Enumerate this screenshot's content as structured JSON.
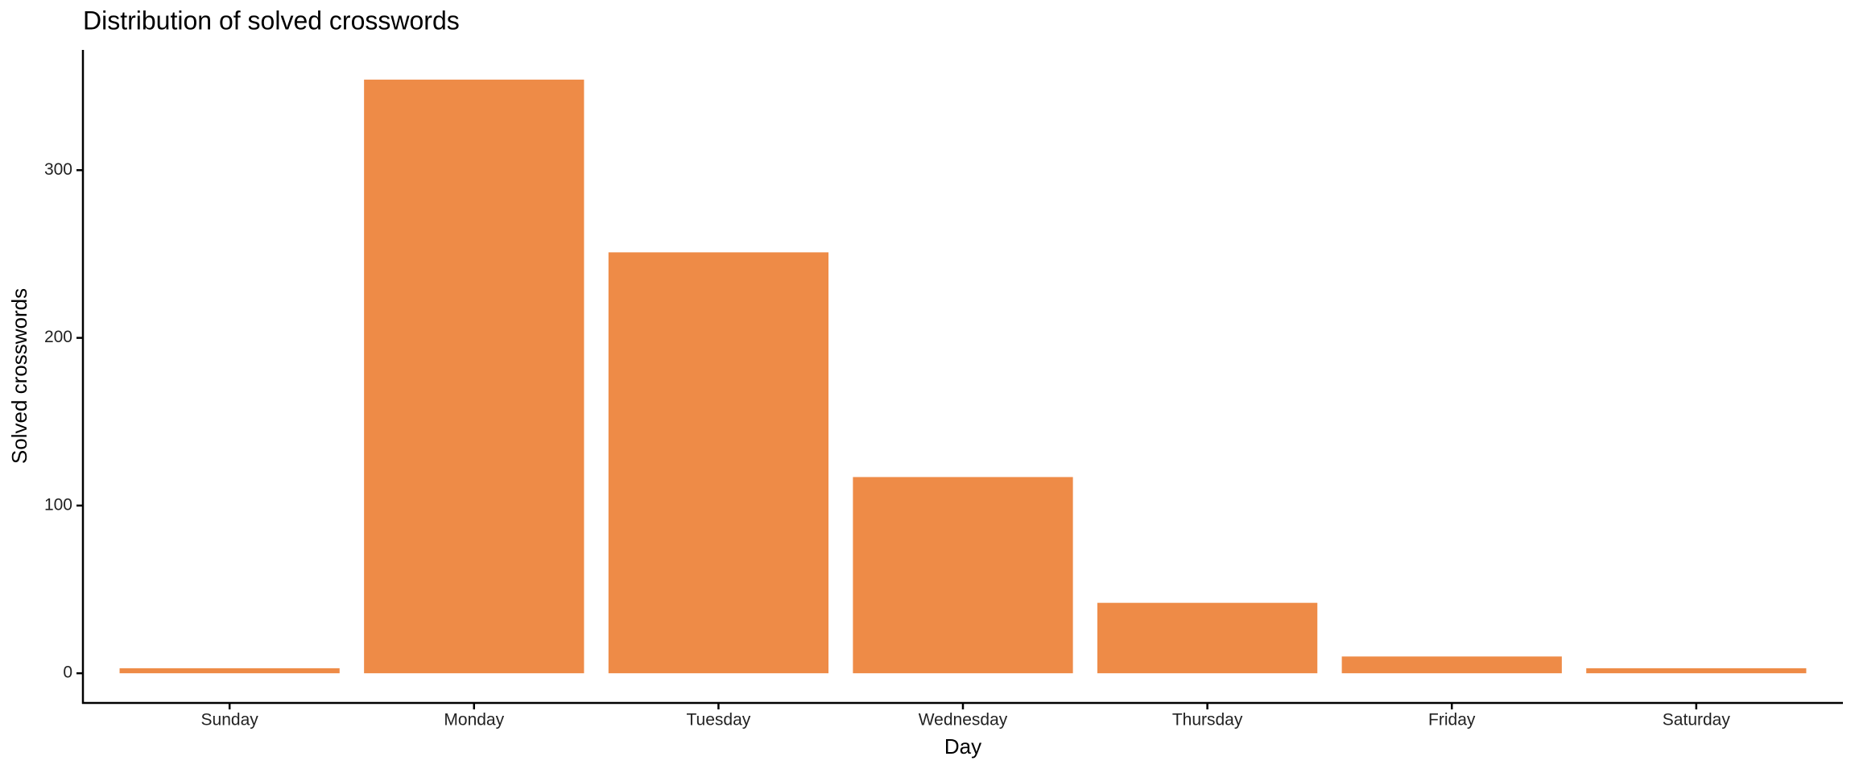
{
  "chart_data": {
    "type": "bar",
    "title": "Distribution of solved crosswords",
    "x_label": "Day",
    "y_label": "Solved crosswords",
    "categories": [
      "Sunday",
      "Monday",
      "Tuesday",
      "Wednesday",
      "Thursday",
      "Friday",
      "Saturday"
    ],
    "values": [
      3,
      354,
      251,
      117,
      42,
      10,
      3
    ],
    "color": "#ee8b47",
    "ylim": [
      -17.7,
      371.7
    ],
    "yticks": [
      0,
      100,
      200,
      300
    ],
    "grid": false
  }
}
